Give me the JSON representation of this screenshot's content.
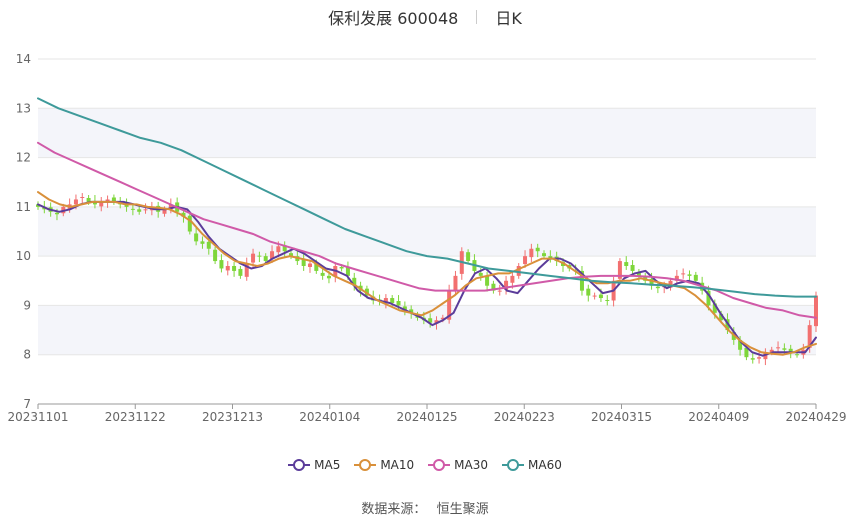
{
  "header": {
    "title": "保利发展 600048",
    "period": "日K"
  },
  "legend": [
    {
      "name": "MA5",
      "color": "#5b3c9a"
    },
    {
      "name": "MA10",
      "color": "#d9903a"
    },
    {
      "name": "MA30",
      "color": "#d05aa8"
    },
    {
      "name": "MA60",
      "color": "#3e9a9a"
    }
  ],
  "source": {
    "label": "数据来源：",
    "value": "恒生聚源"
  },
  "chart_data": {
    "type": "candlestick",
    "title": "保利发展 600048",
    "subtitle": "日K",
    "ylim": [
      7,
      14
    ],
    "yticks": [
      7,
      8,
      9,
      10,
      11,
      12,
      13,
      14
    ],
    "xtick_labels": [
      "20231101",
      "20231122",
      "20231213",
      "20240104",
      "20240125",
      "20240223",
      "20240315",
      "20240409",
      "20240429"
    ],
    "up_color": "#f27070",
    "down_color": "#7ed63a",
    "closes": [
      11.0,
      10.95,
      10.9,
      10.85,
      11.0,
      11.05,
      11.15,
      11.2,
      11.1,
      11.05,
      11.1,
      11.15,
      11.1,
      11.05,
      11.0,
      10.95,
      10.9,
      10.95,
      11.0,
      10.9,
      10.95,
      11.05,
      10.9,
      10.8,
      10.5,
      10.3,
      10.25,
      10.15,
      9.9,
      9.75,
      9.8,
      9.7,
      9.6,
      9.85,
      10.05,
      10.0,
      9.9,
      10.1,
      10.2,
      10.1,
      10.0,
      9.9,
      9.8,
      9.85,
      9.7,
      9.6,
      9.55,
      9.8,
      9.75,
      9.6,
      9.4,
      9.3,
      9.2,
      9.1,
      9.1,
      9.15,
      9.05,
      9.0,
      8.9,
      8.85,
      8.75,
      8.7,
      8.65,
      8.7,
      8.75,
      9.3,
      9.6,
      10.1,
      9.9,
      9.7,
      9.6,
      9.4,
      9.3,
      9.3,
      9.5,
      9.6,
      9.8,
      10.0,
      10.15,
      10.1,
      10.0,
      9.95,
      9.9,
      9.8,
      9.75,
      9.7,
      9.3,
      9.2,
      9.2,
      9.15,
      9.1,
      9.5,
      9.9,
      9.8,
      9.7,
      9.6,
      9.5,
      9.4,
      9.35,
      9.4,
      9.5,
      9.6,
      9.65,
      9.6,
      9.5,
      9.3,
      9.0,
      8.85,
      8.7,
      8.5,
      8.3,
      8.1,
      7.95,
      7.9,
      7.95,
      8.05,
      8.1,
      8.15,
      8.1,
      8.05,
      8.0,
      8.1,
      8.6,
      9.2
    ],
    "series": [
      {
        "name": "MA5",
        "color": "#5b3c9a",
        "width": 2,
        "values": [
          11.05,
          10.95,
          10.9,
          10.95,
          11.05,
          11.1,
          11.1,
          11.1,
          11.1,
          11.05,
          11.0,
          10.95,
          10.95,
          11.0,
          10.95,
          10.7,
          10.4,
          10.15,
          10.0,
          9.85,
          9.75,
          9.8,
          9.95,
          10.05,
          10.15,
          10.05,
          9.9,
          9.75,
          9.7,
          9.6,
          9.3,
          9.15,
          9.1,
          9.05,
          8.95,
          8.85,
          8.75,
          8.6,
          8.7,
          8.85,
          9.3,
          9.65,
          9.75,
          9.55,
          9.3,
          9.25,
          9.5,
          9.75,
          9.95,
          9.95,
          9.85,
          9.65,
          9.45,
          9.25,
          9.3,
          9.55,
          9.65,
          9.7,
          9.5,
          9.35,
          9.45,
          9.5,
          9.45,
          9.2,
          8.85,
          8.55,
          8.25,
          8.05,
          7.98,
          8.05,
          8.05,
          8.05,
          8.05,
          8.35
        ]
      },
      {
        "name": "MA10",
        "color": "#d9903a",
        "width": 2,
        "values": [
          11.3,
          11.15,
          11.05,
          11.0,
          11.05,
          11.1,
          11.1,
          11.1,
          11.05,
          11.05,
          11.0,
          10.98,
          10.95,
          10.85,
          10.7,
          10.45,
          10.25,
          10.05,
          9.9,
          9.85,
          9.8,
          9.85,
          9.95,
          10.0,
          9.95,
          9.9,
          9.75,
          9.6,
          9.5,
          9.4,
          9.25,
          9.1,
          9.0,
          8.9,
          8.85,
          8.8,
          8.9,
          9.05,
          9.2,
          9.4,
          9.55,
          9.6,
          9.65,
          9.65,
          9.75,
          9.85,
          9.95,
          9.95,
          9.85,
          9.7,
          9.55,
          9.45,
          9.45,
          9.5,
          9.5,
          9.55,
          9.5,
          9.45,
          9.4,
          9.35,
          9.2,
          9.0,
          8.75,
          8.5,
          8.3,
          8.15,
          8.05,
          8.02,
          8.0,
          8.05,
          8.15,
          8.22
        ]
      },
      {
        "name": "MA30",
        "color": "#d05aa8",
        "width": 2,
        "values": [
          12.3,
          12.1,
          11.95,
          11.8,
          11.65,
          11.5,
          11.35,
          11.2,
          11.05,
          10.9,
          10.75,
          10.65,
          10.55,
          10.45,
          10.3,
          10.2,
          10.1,
          10.0,
          9.85,
          9.75,
          9.65,
          9.55,
          9.45,
          9.35,
          9.3,
          9.3,
          9.3,
          9.3,
          9.35,
          9.4,
          9.45,
          9.5,
          9.55,
          9.58,
          9.6,
          9.6,
          9.6,
          9.58,
          9.55,
          9.5,
          9.4,
          9.3,
          9.15,
          9.05,
          8.95,
          8.9,
          8.8,
          8.75
        ]
      },
      {
        "name": "MA60",
        "color": "#3e9a9a",
        "width": 2,
        "values": [
          13.2,
          13.0,
          12.85,
          12.7,
          12.55,
          12.4,
          12.3,
          12.15,
          11.95,
          11.75,
          11.55,
          11.35,
          11.15,
          10.95,
          10.75,
          10.55,
          10.4,
          10.25,
          10.1,
          10.0,
          9.95,
          9.85,
          9.75,
          9.7,
          9.65,
          9.6,
          9.55,
          9.5,
          9.47,
          9.45,
          9.42,
          9.4,
          9.37,
          9.33,
          9.28,
          9.23,
          9.2,
          9.18,
          9.18
        ]
      }
    ]
  }
}
